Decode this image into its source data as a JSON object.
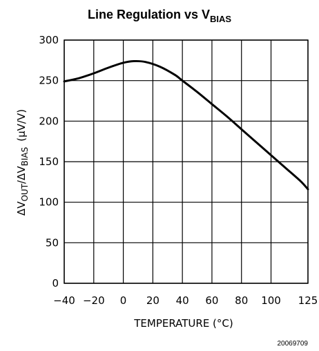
{
  "chart_data": {
    "type": "line",
    "title": {
      "main": "Line Regulation vs V",
      "sub": "BIAS"
    },
    "xlabel": "TEMPERATURE (°C)",
    "ylabel": {
      "delta_out": "ΔV",
      "out_sub": "OUT",
      "slash": "/",
      "delta_bias": "ΔV",
      "bias_sub": "BIAS",
      "units": "(μV/V)"
    },
    "xlim": [
      -40,
      125
    ],
    "ylim": [
      0,
      300
    ],
    "x_ticks": [
      -40,
      -20,
      0,
      20,
      40,
      60,
      80,
      100,
      125
    ],
    "y_ticks": [
      0,
      50,
      100,
      150,
      200,
      250,
      300
    ],
    "grid": true,
    "series": [
      {
        "x": [
          -40,
          -30,
          -20,
          -10,
          0,
          7,
          15,
          25,
          35,
          40,
          50,
          60,
          70,
          80,
          90,
          100,
          110,
          120,
          125
        ],
        "y": [
          249,
          253,
          259,
          266,
          272,
          274,
          273,
          267,
          257,
          250,
          236,
          221,
          206,
          190,
          174,
          158,
          142,
          126,
          116
        ]
      }
    ],
    "color": "#000000"
  },
  "figure_id": "20069709"
}
